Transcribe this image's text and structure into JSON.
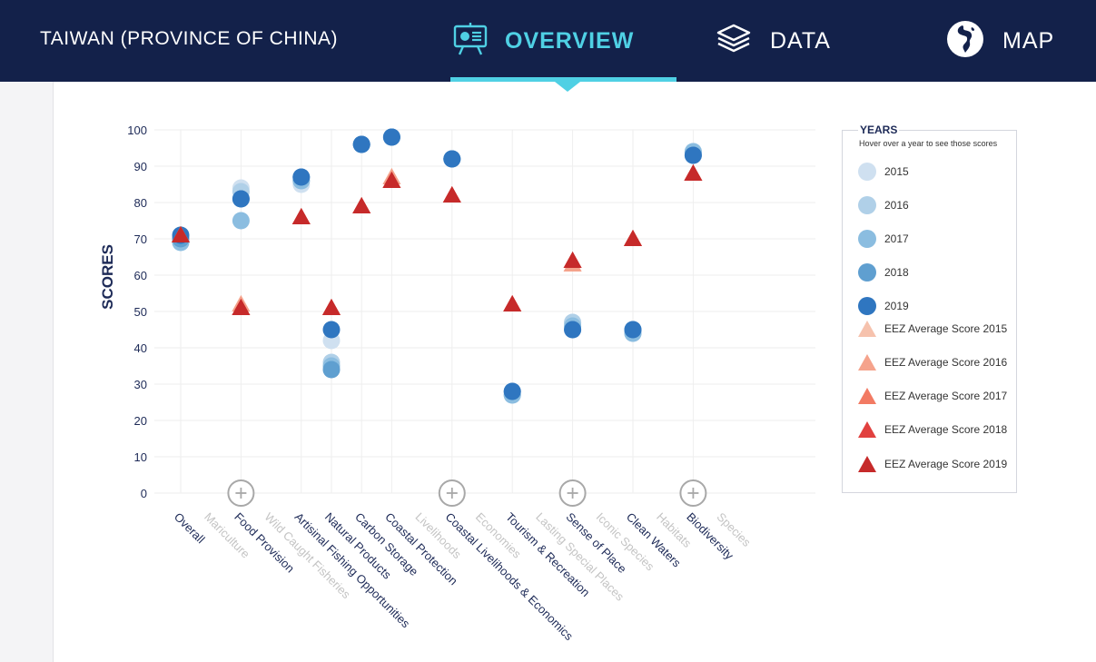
{
  "header": {
    "country": "TAIWAN (PROVINCE OF CHINA)",
    "nav": {
      "overview": "OVERVIEW",
      "data": "DATA",
      "map": "MAP"
    }
  },
  "colors": {
    "navbar": "#13214a",
    "accent": "#4fd0e4",
    "years": [
      "#cfe0f0",
      "#b0d0e8",
      "#8bbde0",
      "#5f9fd0",
      "#2f76c0"
    ],
    "eez": [
      "#f6c2ad",
      "#f5a38c",
      "#f27a63",
      "#e1413f",
      "#c62a2a"
    ]
  },
  "icons": {
    "overview": "presentation-board-icon",
    "data": "layers-icon",
    "map": "globe-icon",
    "expand": "plus-circle-icon"
  },
  "legend": {
    "title": "YEARS",
    "hint": "Hover over a year to see those scores",
    "items": [
      "2015",
      "2016",
      "2017",
      "2018",
      "2019",
      "EEZ Average Score 2015",
      "EEZ Average Score 2016",
      "EEZ Average Score 2017",
      "EEZ Average Score 2018",
      "EEZ Average Score 2019"
    ]
  },
  "chart_data": {
    "type": "scatter",
    "ylabel": "SCORES",
    "ylim": [
      0,
      100
    ],
    "yticks": [
      0,
      10,
      20,
      30,
      40,
      50,
      60,
      70,
      80,
      90,
      100
    ],
    "grid": true,
    "categories": [
      {
        "label": "Overall",
        "main": true
      },
      {
        "label": "Mariculture",
        "main": false
      },
      {
        "label": "Food Provision",
        "main": true
      },
      {
        "label": "Wild Caught Fisheries",
        "main": false
      },
      {
        "label": "Artisinal Fishing Opportunities",
        "main": true
      },
      {
        "label": "Natural Products",
        "main": true
      },
      {
        "label": "Carbon Storage",
        "main": true
      },
      {
        "label": "Coastal Protection",
        "main": true
      },
      {
        "label": "Livelihoods",
        "main": false
      },
      {
        "label": "Coastal Livelihoods & Economics",
        "main": true
      },
      {
        "label": "Economies",
        "main": false
      },
      {
        "label": "Tourism & Recreation",
        "main": true
      },
      {
        "label": "Lasting Special Places",
        "main": false
      },
      {
        "label": "Sense of Place",
        "main": true
      },
      {
        "label": "Iconic Species",
        "main": false
      },
      {
        "label": "Clean Waters",
        "main": true
      },
      {
        "label": "Habitats",
        "main": false
      },
      {
        "label": "Biodiversity",
        "main": true
      },
      {
        "label": "Species",
        "main": false
      }
    ],
    "expand_at": [
      "Food Provision",
      "Coastal Livelihoods & Economics",
      "Sense of Place",
      "Biodiversity"
    ],
    "series": [
      {
        "name": "2015",
        "kind": "score",
        "values": {
          "Overall": 70,
          "Food Provision": 84,
          "Artisinal Fishing Opportunities": 85,
          "Natural Products": 42,
          "Carbon Storage": 96,
          "Coastal Protection": 98,
          "Coastal Livelihoods & Economics": 92,
          "Tourism & Recreation": 27,
          "Sense of Place": 47,
          "Clean Waters": 44,
          "Biodiversity": 94
        }
      },
      {
        "name": "2016",
        "kind": "score",
        "values": {
          "Overall": 70,
          "Food Provision": 83,
          "Artisinal Fishing Opportunities": 86,
          "Natural Products": 36,
          "Carbon Storage": 96,
          "Coastal Protection": 98,
          "Coastal Livelihoods & Economics": 92,
          "Tourism & Recreation": 27,
          "Sense of Place": 47,
          "Clean Waters": 44,
          "Biodiversity": 94
        }
      },
      {
        "name": "2017",
        "kind": "score",
        "values": {
          "Overall": 69,
          "Food Provision": 75,
          "Artisinal Fishing Opportunities": 86,
          "Natural Products": 35,
          "Carbon Storage": 96,
          "Coastal Protection": 98,
          "Coastal Livelihoods & Economics": 92,
          "Tourism & Recreation": 27,
          "Sense of Place": 46,
          "Clean Waters": 44,
          "Biodiversity": 94
        }
      },
      {
        "name": "2018",
        "kind": "score",
        "values": {
          "Overall": 70,
          "Food Provision": 81,
          "Artisinal Fishing Opportunities": 87,
          "Natural Products": 34,
          "Carbon Storage": 96,
          "Coastal Protection": 98,
          "Coastal Livelihoods & Economics": 92,
          "Tourism & Recreation": 28,
          "Sense of Place": 45,
          "Clean Waters": 45,
          "Biodiversity": 93
        }
      },
      {
        "name": "2019",
        "kind": "score",
        "values": {
          "Overall": 71,
          "Food Provision": 81,
          "Artisinal Fishing Opportunities": 87,
          "Natural Products": 45,
          "Carbon Storage": 96,
          "Coastal Protection": 98,
          "Coastal Livelihoods & Economics": 92,
          "Tourism & Recreation": 28,
          "Sense of Place": 45,
          "Clean Waters": 45,
          "Biodiversity": 93
        }
      },
      {
        "name": "EEZ Average Score 2015",
        "kind": "eez",
        "values": {
          "Overall": 71,
          "Food Provision": 52,
          "Artisinal Fishing Opportunities": 76,
          "Natural Products": 51,
          "Carbon Storage": 79,
          "Coastal Protection": 87,
          "Coastal Livelihoods & Economics": 82,
          "Tourism & Recreation": 52,
          "Sense of Place": 63,
          "Clean Waters": 70,
          "Biodiversity": 88
        }
      },
      {
        "name": "EEZ Average Score 2016",
        "kind": "eez",
        "values": {
          "Overall": 71,
          "Food Provision": 52,
          "Artisinal Fishing Opportunities": 76,
          "Natural Products": 51,
          "Carbon Storage": 79,
          "Coastal Protection": 87,
          "Coastal Livelihoods & Economics": 82,
          "Tourism & Recreation": 52,
          "Sense of Place": 63,
          "Clean Waters": 70,
          "Biodiversity": 88
        }
      },
      {
        "name": "EEZ Average Score 2017",
        "kind": "eez",
        "values": {
          "Overall": 71,
          "Food Provision": 51,
          "Artisinal Fishing Opportunities": 76,
          "Natural Products": 51,
          "Carbon Storage": 79,
          "Coastal Protection": 86,
          "Coastal Livelihoods & Economics": 82,
          "Tourism & Recreation": 52,
          "Sense of Place": 64,
          "Clean Waters": 70,
          "Biodiversity": 88
        }
      },
      {
        "name": "EEZ Average Score 2018",
        "kind": "eez",
        "values": {
          "Overall": 71,
          "Food Provision": 51,
          "Artisinal Fishing Opportunities": 76,
          "Natural Products": 51,
          "Carbon Storage": 79,
          "Coastal Protection": 86,
          "Coastal Livelihoods & Economics": 82,
          "Tourism & Recreation": 52,
          "Sense of Place": 64,
          "Clean Waters": 70,
          "Biodiversity": 88
        }
      },
      {
        "name": "EEZ Average Score 2019",
        "kind": "eez",
        "values": {
          "Overall": 71,
          "Food Provision": 51,
          "Artisinal Fishing Opportunities": 76,
          "Natural Products": 51,
          "Carbon Storage": 79,
          "Coastal Protection": 86,
          "Coastal Livelihoods & Economics": 82,
          "Tourism & Recreation": 52,
          "Sense of Place": 64,
          "Clean Waters": 70,
          "Biodiversity": 88
        }
      }
    ]
  }
}
